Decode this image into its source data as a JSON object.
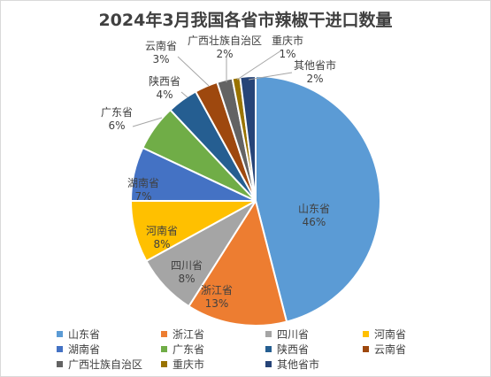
{
  "chart_data": {
    "type": "pie",
    "title": "2024年3月我国各省市辣椒干进口数量",
    "categories": [
      "山东省",
      "浙江省",
      "四川省",
      "河南省",
      "湖南省",
      "广东省",
      "陕西省",
      "云南省",
      "广西壮族自治区",
      "重庆市",
      "其他省市"
    ],
    "values": [
      46,
      13,
      8,
      8,
      7,
      6,
      4,
      3,
      2,
      1,
      2
    ],
    "labels": [
      "46%",
      "13%",
      "8%",
      "8%",
      "7%",
      "6%",
      "4%",
      "3%",
      "2%",
      "1%",
      "2%"
    ],
    "colors": [
      "#5b9bd5",
      "#ed7d31",
      "#a5a5a5",
      "#ffc000",
      "#4472c4",
      "#70ad47",
      "#255e91",
      "#9e480e",
      "#636363",
      "#997300",
      "#264478"
    ],
    "legend_position": "bottom"
  }
}
